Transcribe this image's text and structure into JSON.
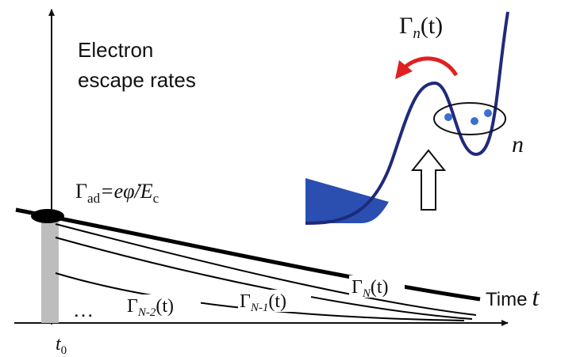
{
  "title": {
    "line1": "Electron",
    "line2": "escape rates"
  },
  "adiabatic_rate": {
    "symbol": "Γ",
    "sub": "ad",
    "middle": "=eφ̇/E",
    "sub2": "c"
  },
  "inset": {
    "rate": {
      "symbol": "Γ",
      "sub": "n",
      "rest": "(t)"
    },
    "level": "n"
  },
  "curves": [
    {
      "symbol": "Γ",
      "sub": "N",
      "rest": "(t)"
    },
    {
      "symbol": "Γ",
      "sub": "N-1",
      "rest": "(t)"
    },
    {
      "symbol": "Γ",
      "sub": "N-2",
      "rest": "(t)"
    }
  ],
  "ellipsis": "…",
  "x_axis": {
    "label": "Time",
    "symbol": "t"
  },
  "t0": {
    "symbol": "t",
    "sub": "0"
  }
}
